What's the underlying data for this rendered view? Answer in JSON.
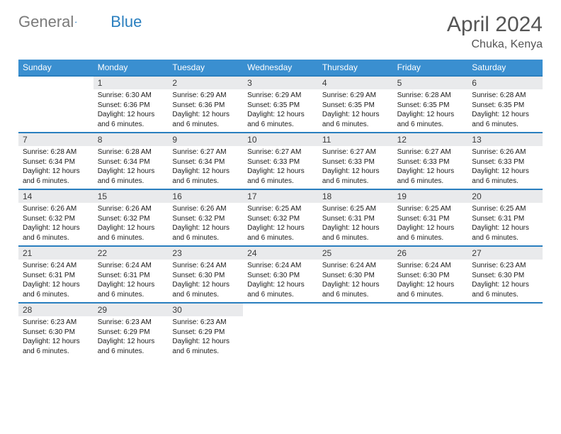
{
  "brand": {
    "word1": "General",
    "word2": "Blue"
  },
  "title": "April 2024",
  "location": "Chuka, Kenya",
  "colors": {
    "header_bg": "#3a8fd0",
    "week_border": "#2a7fbf",
    "daynum_bg": "#e9eaec",
    "logo_gray": "#7a7a7a",
    "logo_blue": "#2a7fbf",
    "title_color": "#555555",
    "text_color": "#1a1a1a"
  },
  "day_headers": [
    "Sunday",
    "Monday",
    "Tuesday",
    "Wednesday",
    "Thursday",
    "Friday",
    "Saturday"
  ],
  "first_weekday_offset": 1,
  "days_in_month": 30,
  "daylight_text": "Daylight: 12 hours and 6 minutes.",
  "days": {
    "1": {
      "sunrise": "6:30 AM",
      "sunset": "6:36 PM"
    },
    "2": {
      "sunrise": "6:29 AM",
      "sunset": "6:36 PM"
    },
    "3": {
      "sunrise": "6:29 AM",
      "sunset": "6:35 PM"
    },
    "4": {
      "sunrise": "6:29 AM",
      "sunset": "6:35 PM"
    },
    "5": {
      "sunrise": "6:28 AM",
      "sunset": "6:35 PM"
    },
    "6": {
      "sunrise": "6:28 AM",
      "sunset": "6:35 PM"
    },
    "7": {
      "sunrise": "6:28 AM",
      "sunset": "6:34 PM"
    },
    "8": {
      "sunrise": "6:28 AM",
      "sunset": "6:34 PM"
    },
    "9": {
      "sunrise": "6:27 AM",
      "sunset": "6:34 PM"
    },
    "10": {
      "sunrise": "6:27 AM",
      "sunset": "6:33 PM"
    },
    "11": {
      "sunrise": "6:27 AM",
      "sunset": "6:33 PM"
    },
    "12": {
      "sunrise": "6:27 AM",
      "sunset": "6:33 PM"
    },
    "13": {
      "sunrise": "6:26 AM",
      "sunset": "6:33 PM"
    },
    "14": {
      "sunrise": "6:26 AM",
      "sunset": "6:32 PM"
    },
    "15": {
      "sunrise": "6:26 AM",
      "sunset": "6:32 PM"
    },
    "16": {
      "sunrise": "6:26 AM",
      "sunset": "6:32 PM"
    },
    "17": {
      "sunrise": "6:25 AM",
      "sunset": "6:32 PM"
    },
    "18": {
      "sunrise": "6:25 AM",
      "sunset": "6:31 PM"
    },
    "19": {
      "sunrise": "6:25 AM",
      "sunset": "6:31 PM"
    },
    "20": {
      "sunrise": "6:25 AM",
      "sunset": "6:31 PM"
    },
    "21": {
      "sunrise": "6:24 AM",
      "sunset": "6:31 PM"
    },
    "22": {
      "sunrise": "6:24 AM",
      "sunset": "6:31 PM"
    },
    "23": {
      "sunrise": "6:24 AM",
      "sunset": "6:30 PM"
    },
    "24": {
      "sunrise": "6:24 AM",
      "sunset": "6:30 PM"
    },
    "25": {
      "sunrise": "6:24 AM",
      "sunset": "6:30 PM"
    },
    "26": {
      "sunrise": "6:24 AM",
      "sunset": "6:30 PM"
    },
    "27": {
      "sunrise": "6:23 AM",
      "sunset": "6:30 PM"
    },
    "28": {
      "sunrise": "6:23 AM",
      "sunset": "6:30 PM"
    },
    "29": {
      "sunrise": "6:23 AM",
      "sunset": "6:29 PM"
    },
    "30": {
      "sunrise": "6:23 AM",
      "sunset": "6:29 PM"
    }
  },
  "labels": {
    "sunrise": "Sunrise:",
    "sunset": "Sunset:"
  }
}
